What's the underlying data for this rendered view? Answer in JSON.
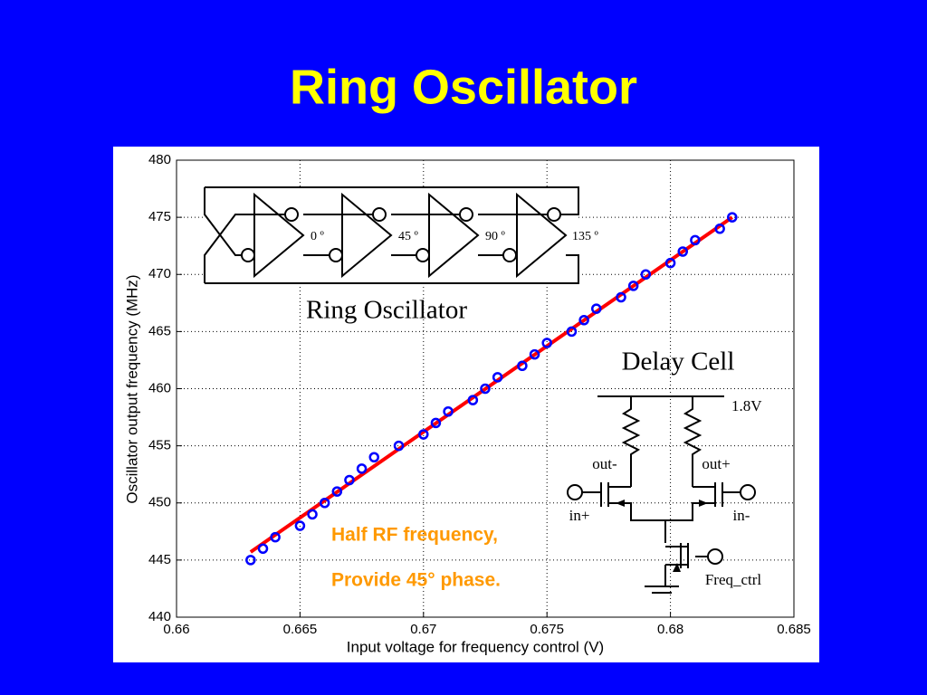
{
  "chart_data": {
    "type": "scatter",
    "title": "Ring Oscillator",
    "xlabel": "Input voltage for frequency control (V)",
    "ylabel": "Oscillator output frequency (MHz)",
    "x": [
      0.663,
      0.6635,
      0.664,
      0.665,
      0.6655,
      0.666,
      0.6665,
      0.667,
      0.6675,
      0.668,
      0.669,
      0.67,
      0.6705,
      0.671,
      0.672,
      0.6725,
      0.673,
      0.674,
      0.6745,
      0.675,
      0.676,
      0.6765,
      0.677,
      0.678,
      0.6785,
      0.679,
      0.68,
      0.6805,
      0.681,
      0.682,
      0.6825
    ],
    "values": [
      445,
      446,
      447,
      448,
      449,
      450,
      451,
      452,
      453,
      454,
      455,
      456,
      457,
      458,
      459,
      460,
      461,
      462,
      463,
      464,
      465,
      466,
      467,
      468,
      469,
      470,
      471,
      472,
      473,
      474,
      475
    ],
    "color": "#0000ff",
    "fit": {
      "x": [
        0.663,
        0.6825
      ],
      "values": [
        445.7,
        475
      ],
      "color": "#ff0000"
    },
    "xlim": [
      0.66,
      0.685
    ],
    "xticks": [
      0.66,
      0.665,
      0.67,
      0.675,
      0.68,
      0.685
    ],
    "ylim": [
      440,
      480
    ],
    "yticks": [
      440,
      445,
      450,
      455,
      460,
      465,
      470,
      475,
      480
    ],
    "grid": true,
    "annotations": [
      "Half RF frequency,",
      "Provide 45° phase."
    ],
    "ring_inset": {
      "title": "Ring Oscillator",
      "phases": [
        "0 º",
        "45 º",
        "90 º",
        "135 º"
      ]
    },
    "delay_inset": {
      "title": "Delay Cell",
      "supply": "1.8V",
      "out_minus": "out-",
      "out_plus": "out+",
      "in_plus": "in+",
      "in_minus": "in-",
      "control": "Freq_ctrl"
    }
  }
}
